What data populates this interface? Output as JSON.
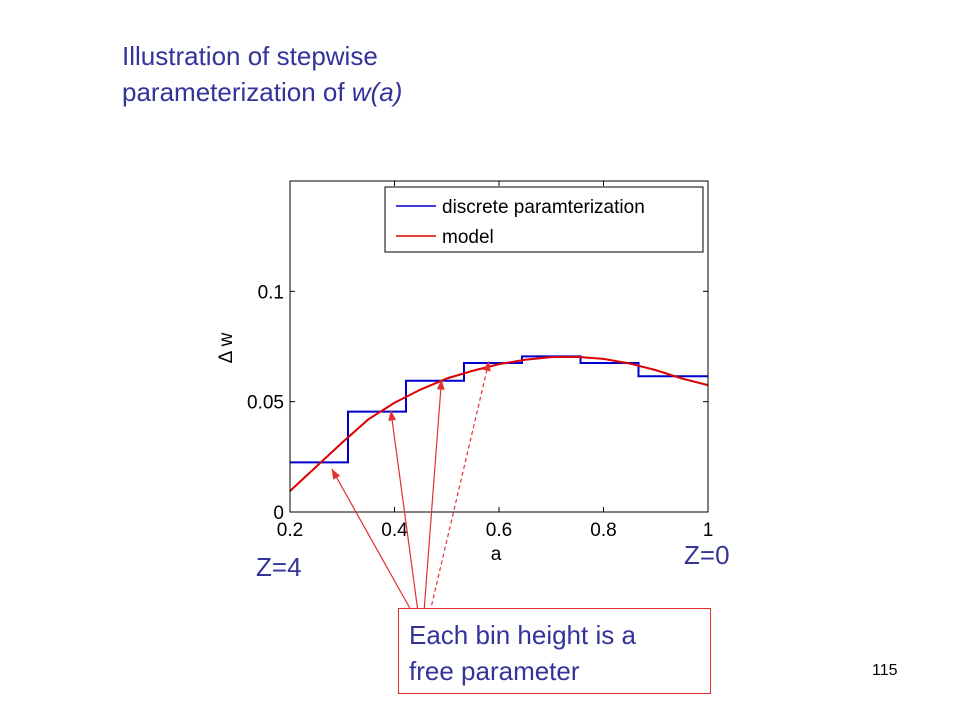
{
  "slide": {
    "title_line1": "Illustration of stepwise",
    "title_line2_prefix": "parameterization of ",
    "title_line2_italic": "w(a)",
    "z4_label": "Z=4",
    "z0_label": "Z=0",
    "note_line1": "Each bin height is a",
    "note_line2": "free parameter",
    "page_number": "115"
  },
  "colors": {
    "title": "#33339a",
    "discrete": "#0000cc",
    "model": "#dd0000",
    "arrow": "#e03030",
    "axis": "#000000"
  },
  "chart_data": {
    "type": "line",
    "xlabel": "a",
    "ylabel": "Δ w",
    "xlim": [
      0.2,
      1.0
    ],
    "ylim": [
      0,
      0.15
    ],
    "xticks": [
      "0.2",
      "0.4",
      "0.6",
      "0.8",
      "1"
    ],
    "yticks": [
      "0",
      "0.05",
      "0.1"
    ],
    "legend_position": "top-right",
    "grid": false,
    "series": [
      {
        "name": "discrete paramterization",
        "style": "step",
        "bins": [
          {
            "x0": 0.2,
            "x1": 0.311,
            "y": 0.0225
          },
          {
            "x0": 0.311,
            "x1": 0.422,
            "y": 0.0455
          },
          {
            "x0": 0.422,
            "x1": 0.533,
            "y": 0.0595
          },
          {
            "x0": 0.533,
            "x1": 0.644,
            "y": 0.0675
          },
          {
            "x0": 0.644,
            "x1": 0.756,
            "y": 0.0705
          },
          {
            "x0": 0.756,
            "x1": 0.867,
            "y": 0.0675
          },
          {
            "x0": 0.867,
            "x1": 1.0,
            "y": 0.0615
          }
        ]
      },
      {
        "name": "model",
        "style": "curve",
        "x": [
          0.2,
          0.25,
          0.3,
          0.35,
          0.4,
          0.45,
          0.5,
          0.55,
          0.6,
          0.65,
          0.7,
          0.75,
          0.8,
          0.85,
          0.9,
          0.95,
          1.0
        ],
        "y": [
          0.0095,
          0.0205,
          0.0315,
          0.042,
          0.0495,
          0.0555,
          0.0605,
          0.064,
          0.067,
          0.069,
          0.0702,
          0.0703,
          0.0694,
          0.0673,
          0.0643,
          0.0605,
          0.0575
        ]
      }
    ],
    "annotation_arrows": [
      {
        "target_x": 0.42,
        "target_y": 0.0015,
        "from": "note",
        "style": "solid",
        "tx": 0.28,
        "ty": 0.0195
      },
      {
        "target_x": 0.4,
        "target_y": 0.0,
        "from": "note",
        "style": "solid",
        "tx": 0.393,
        "ty": 0.046
      },
      {
        "target_x": 0.4,
        "target_y": 0.0,
        "from": "note",
        "style": "solid",
        "tx": 0.49,
        "ty": 0.06
      },
      {
        "target_x": 0.4,
        "target_y": 0.0,
        "from": "note",
        "style": "dashed",
        "tx": 0.581,
        "ty": 0.0685
      }
    ]
  }
}
